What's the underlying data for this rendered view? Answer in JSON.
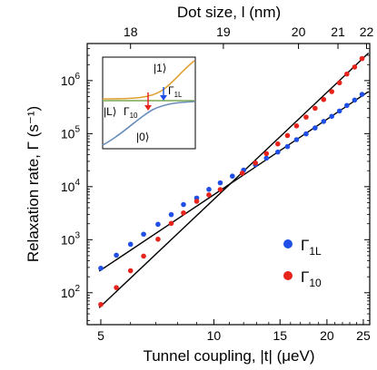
{
  "chart_data": {
    "type": "scatter",
    "x_scale": "log",
    "y_scale": "log",
    "xlabel": "Tunnel coupling,  |t| (μeV)",
    "ylabel": "Relaxation rate,  Γ (s⁻¹)",
    "top_xlabel": "Dot size,  l (nm)",
    "xlim": [
      4.6,
      26
    ],
    "ylim": [
      25,
      5000000
    ],
    "x_ticks": [
      5,
      10,
      15,
      20,
      25
    ],
    "x_tick_labels": [
      "5",
      "10",
      "15",
      "20",
      "25"
    ],
    "top_ticks": [
      {
        "x": 6.0,
        "label": "18"
      },
      {
        "x": 10.6,
        "label": "19"
      },
      {
        "x": 16.8,
        "label": "20"
      },
      {
        "x": 21.4,
        "label": "21"
      },
      {
        "x": 25.5,
        "label": "22"
      }
    ],
    "y_ticks": [
      100,
      1000,
      10000,
      100000,
      1000000
    ],
    "y_tick_labels": [
      {
        "base": "10",
        "exp": "2"
      },
      {
        "base": "10",
        "exp": "3"
      },
      {
        "base": "10",
        "exp": "4"
      },
      {
        "base": "10",
        "exp": "5"
      },
      {
        "base": "10",
        "exp": "6"
      }
    ],
    "series": [
      {
        "name": "Γ_1L",
        "label_base": "Γ",
        "label_sub": "1L",
        "color": "#1f4fe6",
        "points": [
          [
            5.0,
            290
          ],
          [
            5.5,
            510
          ],
          [
            6.0,
            820
          ],
          [
            6.5,
            1270
          ],
          [
            7.1,
            1950
          ],
          [
            7.7,
            2970
          ],
          [
            8.3,
            4600
          ],
          [
            9.0,
            6100
          ],
          [
            9.7,
            8900
          ],
          [
            10.4,
            11800
          ],
          [
            11.2,
            15800
          ],
          [
            12.0,
            20500
          ],
          [
            12.9,
            26000
          ],
          [
            13.8,
            34500
          ],
          [
            14.8,
            45000
          ],
          [
            15.7,
            57000
          ],
          [
            16.6,
            77000
          ],
          [
            17.6,
            99000
          ],
          [
            18.6,
            128000
          ],
          [
            19.6,
            170000
          ],
          [
            20.6,
            212000
          ],
          [
            21.6,
            267000
          ],
          [
            22.6,
            340000
          ],
          [
            23.7,
            430000
          ],
          [
            24.8,
            550000
          ]
        ],
        "fit": [
          [
            4.95,
            255
          ],
          [
            25.8,
            620000
          ]
        ]
      },
      {
        "name": "Γ_10",
        "label_base": "Γ",
        "label_sub": "10",
        "color": "#e8231c",
        "points": [
          [
            5.0,
            60
          ],
          [
            5.5,
            125
          ],
          [
            6.0,
            260
          ],
          [
            6.5,
            490
          ],
          [
            7.1,
            1020
          ],
          [
            7.7,
            2030
          ],
          [
            8.3,
            3200
          ],
          [
            9.0,
            5300
          ],
          [
            9.7,
            7000
          ],
          [
            10.4,
            8800
          ],
          [
            11.9,
            18000
          ],
          [
            12.9,
            28000
          ],
          [
            13.8,
            42000
          ],
          [
            14.8,
            64000
          ],
          [
            15.7,
            92000
          ],
          [
            16.6,
            140000
          ],
          [
            17.6,
            205000
          ],
          [
            18.6,
            300000
          ],
          [
            19.6,
            440000
          ],
          [
            20.6,
            620000
          ],
          [
            21.6,
            910000
          ],
          [
            22.6,
            1330000
          ],
          [
            23.7,
            1800000
          ],
          [
            24.8,
            2600000
          ]
        ],
        "fit": [
          [
            4.95,
            52
          ],
          [
            25.8,
            3300000
          ]
        ]
      }
    ],
    "legend_position": "bottom-right",
    "inset": {
      "labels": {
        "state1": "|1⟩",
        "stateL": "|L⟩",
        "state0": "|0⟩",
        "gamma_1L_base": "Γ",
        "gamma_1L_sub": "1L",
        "gamma_10_base": "Γ",
        "gamma_10_sub": "10"
      },
      "colors": {
        "upper": "#e0a030",
        "middle": "#7aa850",
        "lower": "#6a8ebb",
        "arrow_1L": "#1f4fe6",
        "arrow_10": "#e8231c"
      }
    }
  }
}
